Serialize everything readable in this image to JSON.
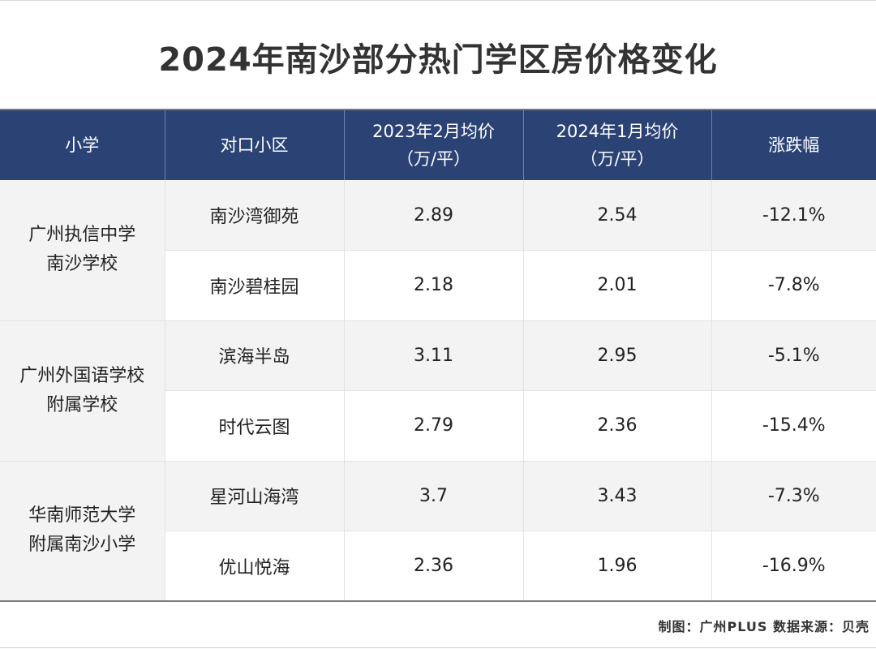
{
  "chart_data": {
    "type": "table",
    "title": "2024年南沙部分热门学区房价格变化",
    "columns": [
      {
        "line1": "小学",
        "line2": ""
      },
      {
        "line1": "对口小区",
        "line2": ""
      },
      {
        "line1": "2023年2月均价",
        "line2": "（万/平）"
      },
      {
        "line1": "2024年1月均价",
        "line2": "（万/平）"
      },
      {
        "line1": "涨跌幅",
        "line2": ""
      }
    ],
    "groups": [
      {
        "school_line1": "广州执信中学",
        "school_line2": "南沙学校",
        "rows": [
          {
            "community": "南沙湾御苑",
            "price_2023": "2.89",
            "price_2024": "2.54",
            "change": "-12.1%"
          },
          {
            "community": "南沙碧桂园",
            "price_2023": "2.18",
            "price_2024": "2.01",
            "change": "-7.8%"
          }
        ]
      },
      {
        "school_line1": "广州外国语学校",
        "school_line2": "附属学校",
        "rows": [
          {
            "community": "滨海半岛",
            "price_2023": "3.11",
            "price_2024": "2.95",
            "change": "-5.1%"
          },
          {
            "community": "时代云图",
            "price_2023": "2.79",
            "price_2024": "2.36",
            "change": "-15.4%"
          }
        ]
      },
      {
        "school_line1": "华南师范大学",
        "school_line2": "附属南沙小学",
        "rows": [
          {
            "community": "星河山海湾",
            "price_2023": "3.7",
            "price_2024": "3.43",
            "change": "-7.3%"
          },
          {
            "community": "优山悦海",
            "price_2023": "2.36",
            "price_2024": "1.96",
            "change": "-16.9%"
          }
        ]
      }
    ],
    "footer": "制图：广州PLUS  数据来源：贝壳"
  }
}
